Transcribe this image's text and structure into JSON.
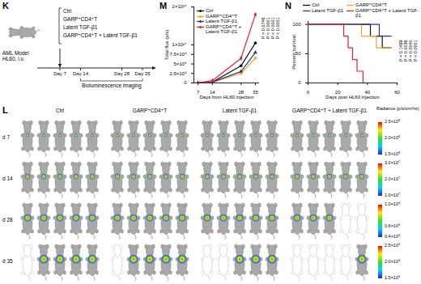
{
  "figure": {
    "K": {
      "title": "K",
      "model": "AML Model HL60, i.v.",
      "groups": [
        "Ctrl",
        "GARP⁺CD4⁺T",
        "Latent TGF-β1",
        "GARP⁺CD4⁺T + Latent TGF-β1"
      ],
      "timeline": [
        {
          "value": 7,
          "label": "Day 7"
        },
        {
          "value": 14,
          "label": "Day 14"
        },
        {
          "value": 28,
          "label": "Day 28"
        },
        {
          "value": 35,
          "label": "Day 35"
        }
      ],
      "imaging": "Bioluminescence imaging"
    },
    "L": {
      "title": "L",
      "groups": [
        {
          "name": "Ctrl",
          "deceased": {
            "d 35": [
              1
            ]
          }
        },
        {
          "name": "GARP⁺CD4⁺T",
          "deceased": {
            "d 35": [
              1
            ]
          }
        },
        {
          "name": "Latent TGF-β1",
          "deceased": {
            "d 35": [
              1,
              2
            ]
          }
        },
        {
          "name": "GARP⁺CD4⁺T + Latent TGF-β1",
          "deceased": {
            "d 28": [
              4,
              5
            ],
            "d 35": [
              1,
              2,
              3,
              4
            ]
          }
        }
      ],
      "rows": [
        "d 7",
        "d 14",
        "d 28",
        "d 35"
      ],
      "mice_per_group": 5,
      "colorbar_title": "Radiance (p/s/cm²/sr)",
      "colorbars": [
        {
          "range": [
            150000.0,
            250000.0
          ],
          "ticks": [
            {
              "value": 250000.0,
              "label": "2.5×10⁵"
            },
            {
              "value": 200000.0,
              "label": "2.0×10⁵"
            },
            {
              "value": 150000.0,
              "label": "1.5×10⁵"
            }
          ]
        },
        {
          "range": [
            10000000.0,
            30000000.0
          ],
          "ticks": [
            {
              "value": 30000000.0,
              "label": "3.0×10⁷"
            },
            {
              "value": 20000000.0,
              "label": "2.0×10⁷"
            },
            {
              "value": 10000000.0,
              "label": "1.0×10⁷"
            }
          ]
        },
        {
          "range": [
            40000000.0,
            100000000.0
          ],
          "ticks": [
            {
              "value": 100000000.0,
              "label": "1.0×10⁸"
            },
            {
              "value": 60000000.0,
              "label": "0.6×10⁸"
            },
            {
              "value": 40000000.0,
              "label": "0.4×10⁸"
            }
          ]
        },
        {
          "range": [
            150000000.0,
            250000000.0
          ],
          "ticks": [
            {
              "value": 250000000.0,
              "label": "2.5×10⁸"
            },
            {
              "value": 200000000.0,
              "label": "2.0×10⁸"
            },
            {
              "value": 150000000.0,
              "label": "1.5×10⁸"
            }
          ]
        }
      ]
    }
  },
  "chart_data": [
    {
      "type": "line",
      "title": "M",
      "xlabel": "Days from HL60 injection",
      "ylabel": "Total flux (p/s)",
      "x": [
        7,
        14,
        28,
        35
      ],
      "series": [
        {
          "name": "Ctrl",
          "color": "#111111",
          "marker": "circle",
          "values": [
            10000000.0,
            200000000.0,
            4500000000.0,
            10500000000.0
          ]
        },
        {
          "name": "GARP⁺CD4⁺T",
          "color": "#f5a623",
          "marker": "square",
          "values": [
            10000000.0,
            150000000.0,
            2500000000.0,
            6500000000.0
          ]
        },
        {
          "name": "Latent TGF-β1",
          "color": "#2e3192",
          "marker": "triangle",
          "values": [
            10000000.0,
            200000000.0,
            3000000000.0,
            8000000000.0
          ]
        },
        {
          "name": "GARP⁺CD4⁺T + Latent TGF-β1",
          "color": "#e8202a",
          "marker": "diamond",
          "values": [
            10000000.0,
            600000000.0,
            6500000000.0,
            18000000000.0
          ]
        }
      ],
      "xlim": [
        5,
        37
      ],
      "xticks": [
        7,
        14,
        28,
        35
      ],
      "ylim": [
        0,
        20000000000.0
      ],
      "yticks": [
        0,
        {
          "value": 2500000000.0,
          "label": "2.5×10⁹"
        },
        {
          "value": 5000000000.0,
          "label": "5×10⁹"
        },
        {
          "value": 7500000000.0,
          "label": "7.5×10⁹"
        },
        {
          "value": 10000000000.0,
          "label": "1×10¹⁰"
        },
        {
          "value": 20000000000.0,
          "label": "2×10¹⁰"
        }
      ],
      "legend": "top-left",
      "annotations": [
        "P = 0.0746",
        "P < 0.0001",
        "P < 0.0001",
        "P < 0.0001"
      ]
    },
    {
      "type": "step",
      "title": "N",
      "xlabel": "Days post HL60 injection",
      "ylabel": "Percent survival",
      "series": [
        {
          "name": "Ctrl",
          "color": "#111111",
          "x": [
            0,
            42,
            50,
            56
          ],
          "values": [
            100,
            80,
            60,
            60
          ]
        },
        {
          "name": "GARP⁺CD4⁺T",
          "color": "#f5a623",
          "x": [
            0,
            36,
            46,
            56
          ],
          "values": [
            100,
            80,
            60,
            60
          ]
        },
        {
          "name": "Latent TGF-β1",
          "color": "#2e3192",
          "x": [
            0,
            48,
            56
          ],
          "values": [
            100,
            80,
            80
          ]
        },
        {
          "name": "GARP⁺CD4⁺T + Latent TGF-β1",
          "color": "#e8202a",
          "x": [
            0,
            24,
            27,
            30,
            33,
            37
          ],
          "values": [
            100,
            80,
            60,
            40,
            20,
            0
          ]
        }
      ],
      "xlim": [
        0,
        60
      ],
      "xticks": [
        0,
        20,
        40,
        60
      ],
      "ylim": [
        0,
        105
      ],
      "yticks": [
        0,
        50,
        100
      ],
      "legend": "top",
      "annotations": [
        "P = 0.1489",
        "P = 0.0036",
        "P = 0.0040",
        "P < 0.0001"
      ]
    }
  ]
}
